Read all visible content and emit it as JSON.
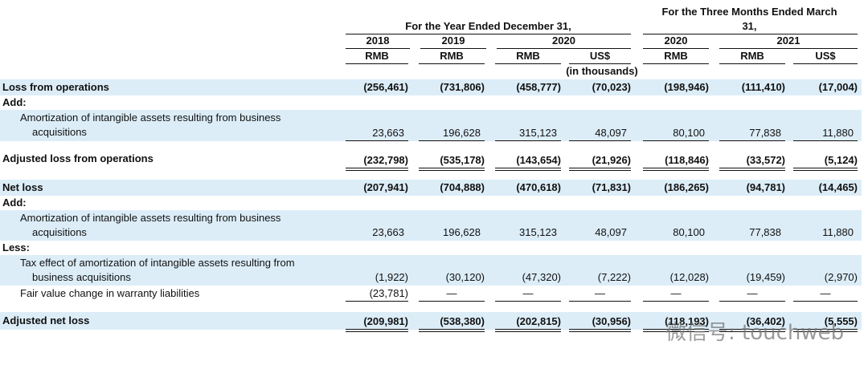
{
  "header": {
    "year_group": "For the Year Ended December 31,",
    "quarter_group": "For the Three Months Ended March 31,",
    "years": [
      "2018",
      "2019",
      "2020",
      "2020",
      "2021"
    ],
    "currencies": [
      "RMB",
      "RMB",
      "RMB",
      "US$",
      "RMB",
      "RMB",
      "US$"
    ],
    "unit": "(in thousands)"
  },
  "rows": [
    {
      "label": "Loss from operations",
      "values": [
        "(256,461)",
        "(731,806)",
        "(458,777)",
        "(70,023)",
        "(198,946)",
        "(111,410)",
        "(17,004)"
      ]
    },
    {
      "label": "Add:"
    },
    {
      "label": "Amortization of intangible assets resulting from business acquisitions",
      "values": [
        "23,663",
        "196,628",
        "315,123",
        "48,097",
        "80,100",
        "77,838",
        "11,880"
      ]
    },
    {
      "label": "Adjusted loss from operations",
      "values": [
        "(232,798)",
        "(535,178)",
        "(143,654)",
        "(21,926)",
        "(118,846)",
        "(33,572)",
        "(5,124)"
      ]
    },
    {
      "label": "Net loss",
      "values": [
        "(207,941)",
        "(704,888)",
        "(470,618)",
        "(71,831)",
        "(186,265)",
        "(94,781)",
        "(14,465)"
      ]
    },
    {
      "label": "Add:"
    },
    {
      "label": "Amortization of intangible assets resulting from business acquisitions",
      "values": [
        "23,663",
        "196,628",
        "315,123",
        "48,097",
        "80,100",
        "77,838",
        "11,880"
      ]
    },
    {
      "label": "Less:"
    },
    {
      "label": "Tax effect of amortization of intangible assets resulting from business acquisitions",
      "values": [
        "(1,922)",
        "(30,120)",
        "(47,320)",
        "(7,222)",
        "(12,028)",
        "(19,459)",
        "(2,970)"
      ]
    },
    {
      "label": "Fair value change in warranty liabilities",
      "values": [
        "(23,781)",
        "—",
        "—",
        "—",
        "—",
        "—",
        "—"
      ]
    },
    {
      "label": "Adjusted net loss",
      "values": [
        "(209,981)",
        "(538,380)",
        "(202,815)",
        "(30,956)",
        "(118,193)",
        "(36,402)",
        "(5,555)"
      ]
    }
  ],
  "watermark": "微信号: touchweb"
}
